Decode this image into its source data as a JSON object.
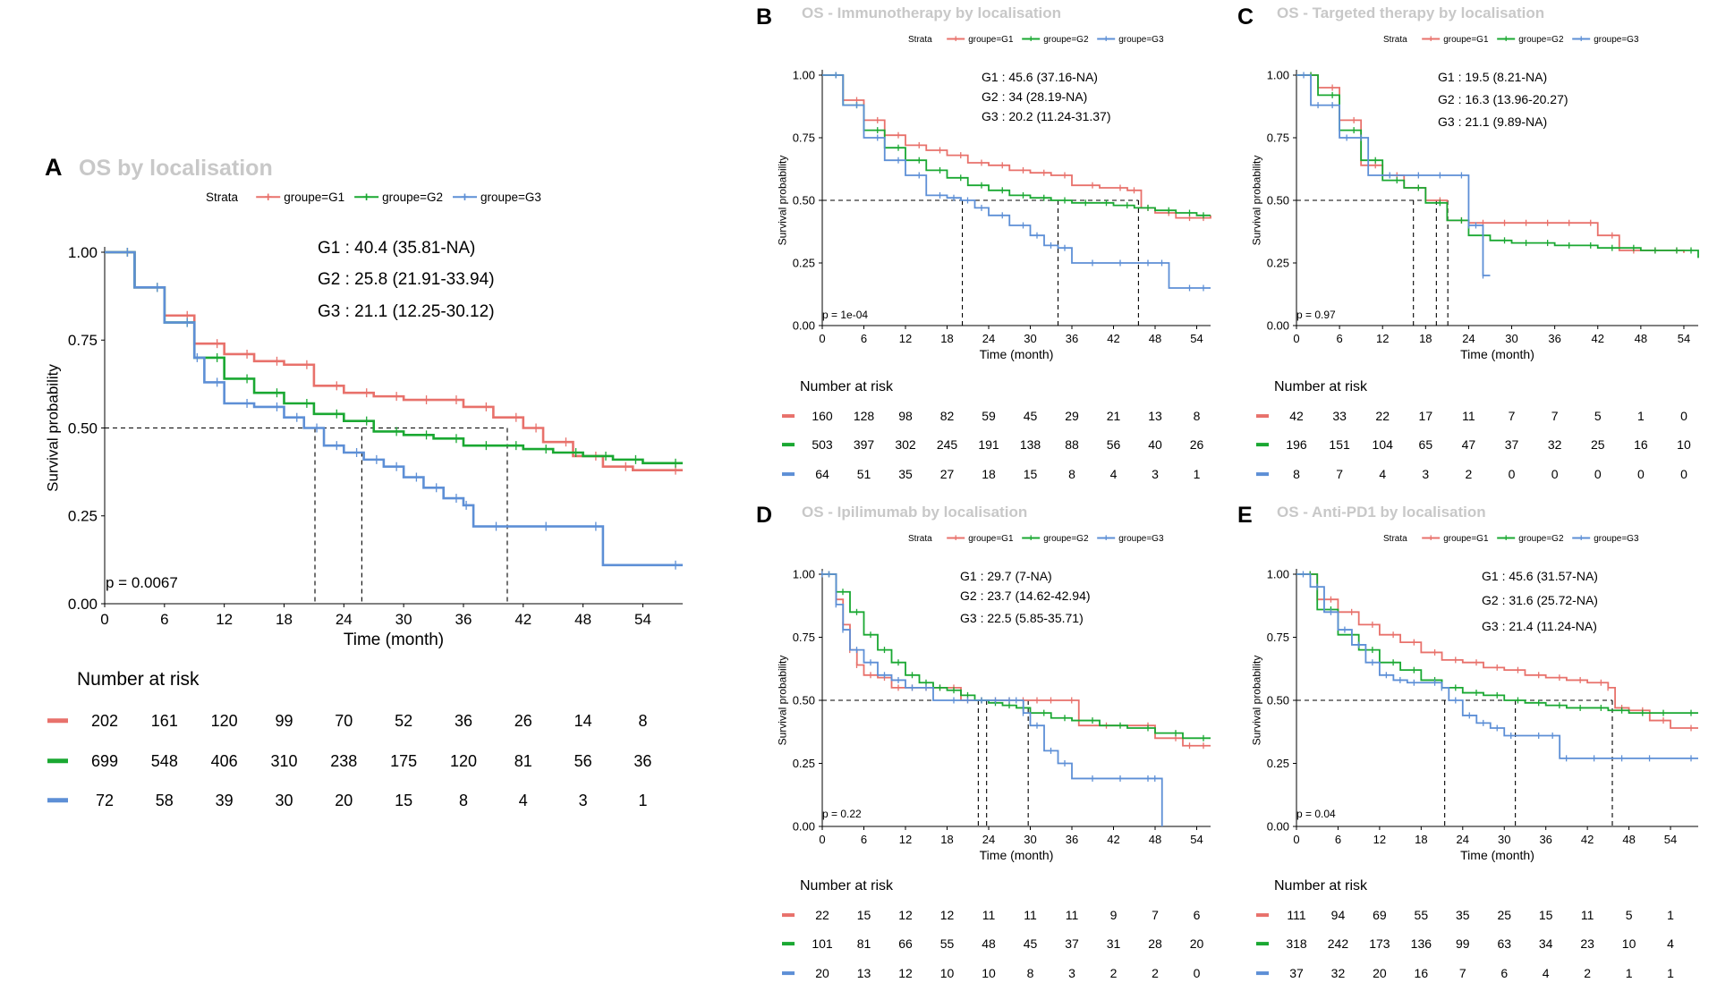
{
  "colors": {
    "G1": "#e8716b",
    "G2": "#1aa832",
    "G3": "#5d8fd6",
    "median": "#000000",
    "axis": "#000000",
    "title_gray": "#c8c8c8"
  },
  "common": {
    "strata_label": "Strata",
    "legend": [
      "groupe=G1",
      "groupe=G2",
      "groupe=G3"
    ],
    "ylabel": "Survival probability",
    "xlabel": "Time (month)",
    "yticks": [
      "0.00",
      "0.25",
      "0.50",
      "0.75",
      "1.00"
    ],
    "xticks": [
      "0",
      "6",
      "12",
      "18",
      "24",
      "30",
      "36",
      "42",
      "48",
      "54"
    ],
    "risk_title": "Number at risk"
  },
  "chart_data": [
    {
      "type": "line",
      "panel": "A",
      "title": "OS by localisation",
      "xlim": [
        0,
        58
      ],
      "ylim": [
        0,
        1
      ],
      "medians_text": [
        "G1 : 40.4 (35.81-NA)",
        "G2 : 25.8 (21.91-33.94)",
        "G3 : 21.1 (12.25-30.12)"
      ],
      "medians": [
        40.4,
        25.8,
        21.1
      ],
      "p_value": "p = 0.0067",
      "series": [
        {
          "name": "G1",
          "x": [
            0,
            3,
            6,
            9,
            12,
            15,
            18,
            21,
            24,
            27,
            30,
            33,
            36,
            39,
            42,
            44,
            47,
            50,
            53,
            58
          ],
          "y": [
            1,
            0.9,
            0.82,
            0.74,
            0.71,
            0.69,
            0.68,
            0.62,
            0.6,
            0.59,
            0.58,
            0.58,
            0.56,
            0.53,
            0.5,
            0.46,
            0.42,
            0.39,
            0.38,
            0.38
          ]
        },
        {
          "name": "G2",
          "x": [
            0,
            3,
            6,
            9,
            12,
            15,
            18,
            21,
            24,
            27,
            30,
            33,
            36,
            39,
            42,
            45,
            48,
            51,
            54,
            58
          ],
          "y": [
            1,
            0.9,
            0.8,
            0.7,
            0.64,
            0.6,
            0.57,
            0.54,
            0.52,
            0.49,
            0.48,
            0.47,
            0.45,
            0.45,
            0.44,
            0.43,
            0.42,
            0.41,
            0.4,
            0.4
          ]
        },
        {
          "name": "G3",
          "x": [
            0,
            3,
            6,
            9,
            10,
            12,
            15,
            18,
            20,
            22,
            24,
            26,
            28,
            30,
            32,
            34,
            36,
            37,
            40,
            45,
            50,
            58
          ],
          "y": [
            1,
            0.9,
            0.8,
            0.7,
            0.63,
            0.57,
            0.56,
            0.53,
            0.5,
            0.45,
            0.43,
            0.41,
            0.39,
            0.36,
            0.33,
            0.3,
            0.28,
            0.22,
            0.22,
            0.22,
            0.11,
            0.11
          ]
        }
      ],
      "risk": {
        "G1": [
          "202",
          "161",
          "120",
          "99",
          "70",
          "52",
          "36",
          "26",
          "14",
          "8"
        ],
        "G2": [
          "699",
          "548",
          "406",
          "310",
          "238",
          "175",
          "120",
          "81",
          "56",
          "36"
        ],
        "G3": [
          "72",
          "58",
          "39",
          "30",
          "20",
          "15",
          "8",
          "4",
          "3",
          "1"
        ]
      }
    },
    {
      "type": "line",
      "panel": "B",
      "title": "OS - Immunotherapy by localisation",
      "xlim": [
        0,
        56
      ],
      "ylim": [
        0,
        1
      ],
      "medians_text": [
        "G1 : 45.6 (37.16-NA)",
        "G2 : 34 (28.19-NA)",
        "G3 : 20.2 (11.24-31.37)"
      ],
      "medians": [
        45.6,
        34,
        20.2
      ],
      "p_value": "p = 1e-04",
      "series": [
        {
          "name": "G1",
          "x": [
            0,
            3,
            6,
            9,
            12,
            15,
            18,
            21,
            24,
            27,
            30,
            33,
            36,
            40,
            44,
            46,
            48,
            51,
            54,
            56
          ],
          "y": [
            1,
            0.9,
            0.82,
            0.76,
            0.72,
            0.7,
            0.68,
            0.65,
            0.64,
            0.62,
            0.61,
            0.6,
            0.56,
            0.55,
            0.54,
            0.47,
            0.45,
            0.43,
            0.43,
            0.44
          ]
        },
        {
          "name": "G2",
          "x": [
            0,
            3,
            6,
            9,
            12,
            15,
            18,
            21,
            24,
            27,
            30,
            33,
            36,
            39,
            42,
            45,
            48,
            51,
            54,
            56
          ],
          "y": [
            1,
            0.88,
            0.78,
            0.71,
            0.66,
            0.62,
            0.59,
            0.56,
            0.54,
            0.52,
            0.51,
            0.5,
            0.49,
            0.49,
            0.48,
            0.47,
            0.46,
            0.45,
            0.44,
            0.44
          ]
        },
        {
          "name": "G3",
          "x": [
            0,
            3,
            6,
            9,
            12,
            15,
            18,
            20,
            22,
            24,
            27,
            30,
            32,
            34,
            36,
            40,
            44,
            48,
            50,
            54,
            56
          ],
          "y": [
            1,
            0.88,
            0.75,
            0.66,
            0.6,
            0.52,
            0.51,
            0.5,
            0.47,
            0.44,
            0.4,
            0.36,
            0.32,
            0.31,
            0.25,
            0.25,
            0.25,
            0.25,
            0.15,
            0.15,
            0.15
          ]
        }
      ],
      "risk": {
        "G1": [
          "160",
          "128",
          "98",
          "82",
          "59",
          "45",
          "29",
          "21",
          "13",
          "8"
        ],
        "G2": [
          "503",
          "397",
          "302",
          "245",
          "191",
          "138",
          "88",
          "56",
          "40",
          "26"
        ],
        "G3": [
          "64",
          "51",
          "35",
          "27",
          "18",
          "15",
          "8",
          "4",
          "3",
          "1"
        ]
      }
    },
    {
      "type": "line",
      "panel": "C",
      "title": "OS - Targeted therapy by localisation",
      "xlim": [
        0,
        56
      ],
      "ylim": [
        0,
        1
      ],
      "medians_text": [
        "G1 : 19.5 (8.21-NA)",
        "G2 : 16.3 (13.96-20.27)",
        "G3 : 21.1 (9.89-NA)"
      ],
      "medians": [
        19.5,
        16.3,
        21.1
      ],
      "p_value": "p = 0.97",
      "series": [
        {
          "name": "G1",
          "x": [
            0,
            3,
            6,
            9,
            12,
            15,
            18,
            21,
            24,
            27,
            30,
            33,
            36,
            39,
            42,
            45,
            48,
            51,
            54
          ],
          "y": [
            1,
            0.95,
            0.82,
            0.64,
            0.6,
            0.55,
            0.5,
            0.42,
            0.41,
            0.41,
            0.41,
            0.41,
            0.41,
            0.41,
            0.36,
            0.3,
            0.3,
            0.3,
            0.29
          ]
        },
        {
          "name": "G2",
          "x": [
            0,
            3,
            6,
            9,
            12,
            15,
            18,
            21,
            24,
            27,
            30,
            33,
            36,
            39,
            42,
            45,
            48,
            51,
            54,
            56
          ],
          "y": [
            1,
            0.92,
            0.78,
            0.66,
            0.58,
            0.55,
            0.49,
            0.42,
            0.36,
            0.34,
            0.33,
            0.33,
            0.32,
            0.32,
            0.31,
            0.31,
            0.3,
            0.3,
            0.3,
            0.27
          ]
        },
        {
          "name": "G3",
          "x": [
            0,
            2,
            4,
            6,
            8,
            10,
            14,
            18,
            21,
            24,
            25,
            26,
            27
          ],
          "y": [
            1,
            0.88,
            0.88,
            0.75,
            0.75,
            0.6,
            0.6,
            0.6,
            0.6,
            0.4,
            0.4,
            0.2,
            0.2
          ]
        }
      ],
      "risk": {
        "G1": [
          "42",
          "33",
          "22",
          "17",
          "11",
          "7",
          "7",
          "5",
          "1",
          "0"
        ],
        "G2": [
          "196",
          "151",
          "104",
          "65",
          "47",
          "37",
          "32",
          "25",
          "16",
          "10"
        ],
        "G3": [
          "8",
          "7",
          "4",
          "3",
          "2",
          "0",
          "0",
          "0",
          "0",
          "0"
        ]
      }
    },
    {
      "type": "line",
      "panel": "D",
      "title": "OS - Ipilimumab by localisation",
      "xlim": [
        0,
        56
      ],
      "ylim": [
        0,
        1
      ],
      "medians_text": [
        "G1 : 29.7 (7-NA)",
        "G2 : 23.7 (14.62-42.94)",
        "G3 : 22.5 (5.85-35.71)"
      ],
      "medians": [
        29.7,
        23.7,
        22.5
      ],
      "p_value": "p = 0.22",
      "series": [
        {
          "name": "G1",
          "x": [
            0,
            2,
            3,
            4,
            5,
            6,
            8,
            10,
            12,
            14,
            16,
            18,
            20,
            22,
            24,
            26,
            28,
            30,
            32,
            34,
            37,
            42,
            48,
            52,
            54,
            56
          ],
          "y": [
            1,
            0.9,
            0.8,
            0.7,
            0.64,
            0.6,
            0.59,
            0.55,
            0.55,
            0.55,
            0.55,
            0.55,
            0.5,
            0.5,
            0.5,
            0.5,
            0.5,
            0.5,
            0.5,
            0.5,
            0.4,
            0.4,
            0.35,
            0.32,
            0.32,
            0.32
          ]
        },
        {
          "name": "G2",
          "x": [
            0,
            2,
            4,
            6,
            8,
            10,
            12,
            14,
            16,
            18,
            20,
            22,
            24,
            26,
            28,
            30,
            33,
            36,
            40,
            44,
            48,
            52,
            56
          ],
          "y": [
            1,
            0.93,
            0.85,
            0.76,
            0.7,
            0.65,
            0.6,
            0.57,
            0.55,
            0.54,
            0.52,
            0.5,
            0.49,
            0.48,
            0.47,
            0.45,
            0.43,
            0.42,
            0.4,
            0.39,
            0.37,
            0.35,
            0.35
          ]
        },
        {
          "name": "G3",
          "x": [
            0,
            1,
            2,
            3,
            4,
            6,
            8,
            10,
            12,
            14,
            16,
            20,
            22,
            24,
            26,
            28,
            29,
            30,
            32,
            34,
            36,
            40,
            44,
            48,
            49
          ],
          "y": [
            1,
            1,
            0.88,
            0.78,
            0.7,
            0.65,
            0.6,
            0.58,
            0.55,
            0.55,
            0.5,
            0.5,
            0.5,
            0.5,
            0.5,
            0.5,
            0.45,
            0.4,
            0.3,
            0.25,
            0.19,
            0.19,
            0.19,
            0.19,
            0.0
          ]
        }
      ],
      "risk": {
        "G1": [
          "22",
          "15",
          "12",
          "12",
          "11",
          "11",
          "11",
          "9",
          "7",
          "6"
        ],
        "G2": [
          "101",
          "81",
          "66",
          "55",
          "48",
          "45",
          "37",
          "31",
          "28",
          "20"
        ],
        "G3": [
          "20",
          "13",
          "12",
          "10",
          "10",
          "8",
          "3",
          "2",
          "2",
          "0"
        ]
      }
    },
    {
      "type": "line",
      "panel": "E",
      "title": "OS - Anti-PD1 by localisation",
      "xlim": [
        0,
        58
      ],
      "ylim": [
        0,
        1
      ],
      "medians_text": [
        "G1 : 45.6 (31.57-NA)",
        "G2 : 31.6 (25.72-NA)",
        "G3 : 21.4 (11.24-NA)"
      ],
      "medians": [
        45.6,
        31.6,
        21.4
      ],
      "p_value": "p = 0.04",
      "series": [
        {
          "name": "G1",
          "x": [
            0,
            3,
            6,
            9,
            12,
            15,
            18,
            21,
            24,
            27,
            30,
            33,
            36,
            39,
            42,
            45,
            46,
            48,
            51,
            54,
            58
          ],
          "y": [
            1,
            0.9,
            0.85,
            0.8,
            0.76,
            0.73,
            0.69,
            0.66,
            0.65,
            0.63,
            0.62,
            0.6,
            0.59,
            0.58,
            0.57,
            0.55,
            0.47,
            0.46,
            0.42,
            0.39,
            0.39
          ]
        },
        {
          "name": "G2",
          "x": [
            0,
            3,
            6,
            9,
            12,
            15,
            18,
            21,
            24,
            27,
            30,
            33,
            36,
            39,
            42,
            45,
            48,
            51,
            54,
            58
          ],
          "y": [
            1,
            0.86,
            0.76,
            0.7,
            0.65,
            0.62,
            0.58,
            0.55,
            0.53,
            0.52,
            0.5,
            0.49,
            0.48,
            0.47,
            0.47,
            0.46,
            0.45,
            0.45,
            0.45,
            0.45
          ]
        },
        {
          "name": "G3",
          "x": [
            0,
            2,
            4,
            6,
            8,
            10,
            12,
            14,
            16,
            18,
            21,
            22,
            24,
            26,
            28,
            30,
            32,
            36,
            38,
            40,
            44,
            48,
            52,
            58
          ],
          "y": [
            1,
            0.95,
            0.85,
            0.78,
            0.72,
            0.65,
            0.6,
            0.58,
            0.57,
            0.57,
            0.55,
            0.5,
            0.44,
            0.41,
            0.39,
            0.36,
            0.36,
            0.36,
            0.27,
            0.27,
            0.27,
            0.27,
            0.27,
            0.27
          ]
        }
      ],
      "risk": {
        "G1": [
          "111",
          "94",
          "69",
          "55",
          "35",
          "25",
          "15",
          "11",
          "5",
          "1"
        ],
        "G2": [
          "318",
          "242",
          "173",
          "136",
          "99",
          "63",
          "34",
          "23",
          "10",
          "4"
        ],
        "G3": [
          "37",
          "32",
          "20",
          "16",
          "7",
          "6",
          "4",
          "2",
          "1",
          "1"
        ]
      }
    }
  ]
}
